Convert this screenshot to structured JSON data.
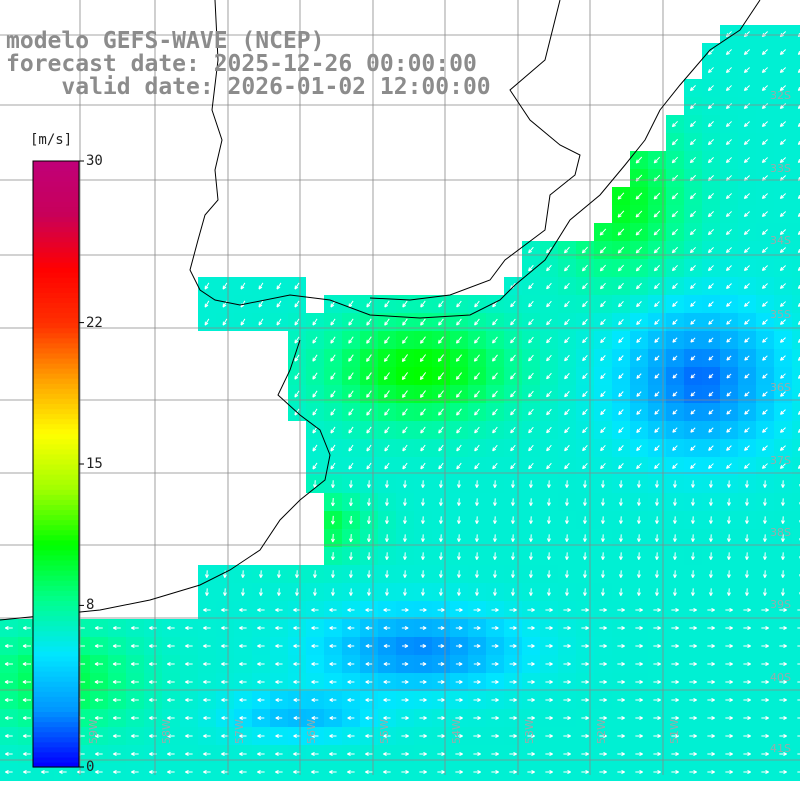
{
  "titles": {
    "line1": "modelo GEFS-WAVE (NCEP)",
    "line2": "forecast date: 2025-12-26 00:00:00",
    "line3": "    valid date: 2026-01-02 12:00:00"
  },
  "colorbar": {
    "unit": "[m/s]",
    "ticks": [
      {
        "label": "30",
        "value": 30
      },
      {
        "label": "22",
        "value": 22
      },
      {
        "label": "15",
        "value": 15
      },
      {
        "label": "8",
        "value": 8
      },
      {
        "label": "0",
        "value": 0
      }
    ],
    "min": 0,
    "max": 30,
    "colors": [
      "#0000ff",
      "#0096ff",
      "#00e6ff",
      "#00ff8c",
      "#00ff00",
      "#a0ff00",
      "#ffff00",
      "#ffa000",
      "#ff3000",
      "#ff0000",
      "#c8005a",
      "#c0007a"
    ]
  },
  "lat_labels": [
    "32S",
    "33S",
    "34S",
    "35S",
    "36S",
    "37S",
    "38S",
    "39S",
    "40S",
    "41S"
  ],
  "lon_labels": [
    "59W",
    "58W",
    "57W",
    "56W",
    "55W",
    "54W",
    "53W",
    "52W",
    "51W"
  ],
  "colors": {
    "grid": "#888888",
    "coast": "#000000",
    "land": "#ffffff",
    "arrow": "#ffffff",
    "title": "#8c8c8c"
  }
}
